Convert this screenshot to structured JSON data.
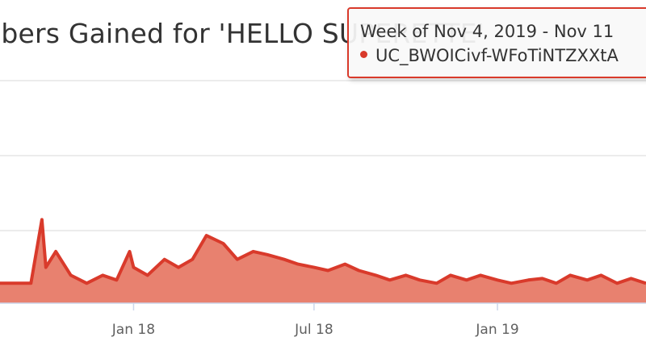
{
  "chart_data": {
    "type": "area",
    "title": "ibers Gained for 'HELLO SUPERETTE'",
    "xlabel": "",
    "ylabel": "",
    "x_tick_labels": [
      "Jan 18",
      "Jul 18",
      "Jan 19"
    ],
    "x_tick_dates": [
      "2018-01-01",
      "2018-07-01",
      "2019-01-01"
    ],
    "x_range": [
      "2017-08-20",
      "2019-05-30"
    ],
    "y_gridlines": 4,
    "grid": true,
    "legend": "none",
    "series": [
      {
        "color": "#d93a2b",
        "x": [
          "2017-08-20",
          "2017-09-05",
          "2017-09-20",
          "2017-10-01",
          "2017-10-05",
          "2017-10-15",
          "2017-10-30",
          "2017-11-15",
          "2017-12-01",
          "2017-12-15",
          "2017-12-28",
          "2018-01-01",
          "2018-01-15",
          "2018-02-01",
          "2018-02-15",
          "2018-03-01",
          "2018-03-15",
          "2018-04-01",
          "2018-04-15",
          "2018-05-01",
          "2018-05-15",
          "2018-06-01",
          "2018-06-15",
          "2018-07-01",
          "2018-07-15",
          "2018-08-01",
          "2018-08-15",
          "2018-09-01",
          "2018-09-15",
          "2018-10-01",
          "2018-10-15",
          "2018-11-01",
          "2018-11-15",
          "2018-12-01",
          "2018-12-15",
          "2019-01-01",
          "2019-01-15",
          "2019-02-01",
          "2019-02-15",
          "2019-03-01",
          "2019-03-15",
          "2019-04-01",
          "2019-04-15",
          "2019-05-01",
          "2019-05-15",
          "2019-05-30"
        ],
        "values": [
          1,
          1,
          1,
          5,
          2,
          3,
          1.5,
          1,
          1.5,
          1.2,
          3,
          2,
          1.5,
          2.5,
          2,
          2.5,
          4,
          3.5,
          2.5,
          3,
          2.8,
          2.5,
          2.2,
          2,
          1.8,
          2.2,
          1.8,
          1.5,
          1.2,
          1.5,
          1.2,
          1,
          1.5,
          1.2,
          1.5,
          1.2,
          1,
          1.2,
          1.3,
          1,
          1.5,
          1.2,
          1.5,
          1,
          1.3,
          1
        ]
      }
    ],
    "tooltip": {
      "header": "Week of Nov 4, 2019 - Nov 11",
      "series_label": "UC_BWOICivf-WFoTiNTZXXtA"
    }
  },
  "colors": {
    "series": "#d93a2b",
    "area_fill": "#e8816f",
    "grid": "#e6e6e6",
    "axis": "#ccd6eb"
  }
}
